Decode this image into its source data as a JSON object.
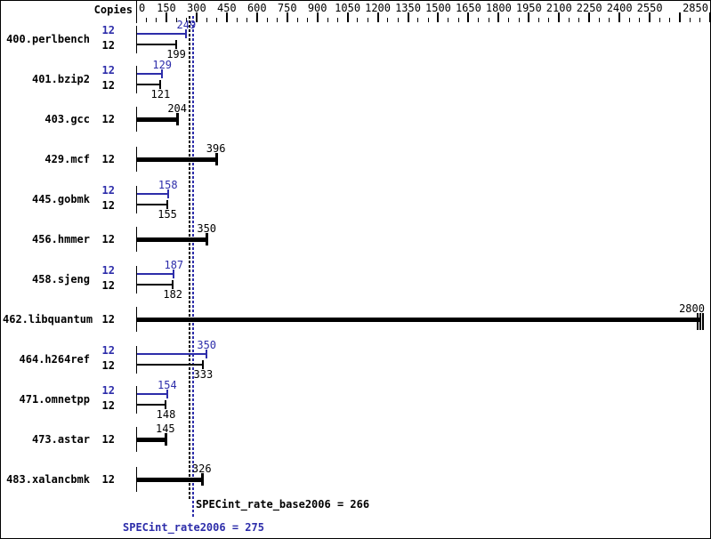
{
  "header": {
    "copies_label": "Copies"
  },
  "colors": {
    "base": "#000000",
    "peak": "#2d2daa",
    "background": "#ffffff"
  },
  "chart_data": {
    "type": "bar",
    "orientation": "horizontal",
    "x_axis": {
      "min": 0,
      "max": 2850,
      "major_tick": 150,
      "minor_tick": 50,
      "tick_labels": [
        "0",
        "150",
        "300",
        "450",
        "600",
        "750",
        "900",
        "1050",
        "1200",
        "1350",
        "1500",
        "1650",
        "1800",
        "1950",
        "2100",
        "2250",
        "2400",
        "2550",
        "2850"
      ]
    },
    "benchmarks": [
      {
        "name": "400.perlbench",
        "copies": 12,
        "peak": 249,
        "base": 199
      },
      {
        "name": "401.bzip2",
        "copies": 12,
        "peak": 129,
        "base": 121
      },
      {
        "name": "403.gcc",
        "copies": 12,
        "peak": null,
        "base": 204
      },
      {
        "name": "429.mcf",
        "copies": 12,
        "peak": null,
        "base": 396
      },
      {
        "name": "445.gobmk",
        "copies": 12,
        "peak": 158,
        "base": 155
      },
      {
        "name": "456.hmmer",
        "copies": 12,
        "peak": null,
        "base": 350
      },
      {
        "name": "458.sjeng",
        "copies": 12,
        "peak": 187,
        "base": 182
      },
      {
        "name": "462.libquantum",
        "copies": 12,
        "peak": null,
        "base": 2800,
        "end_marker": "triple-tick"
      },
      {
        "name": "464.h264ref",
        "copies": 12,
        "peak": 350,
        "base": 333
      },
      {
        "name": "471.omnetpp",
        "copies": 12,
        "peak": 154,
        "base": 148
      },
      {
        "name": "473.astar",
        "copies": 12,
        "peak": null,
        "base": 145
      },
      {
        "name": "483.xalancbmk",
        "copies": 12,
        "peak": null,
        "base": 326
      }
    ],
    "reference_lines": [
      {
        "name": "base",
        "value": 266,
        "style": "dotted",
        "color": "#000000"
      },
      {
        "name": "peak",
        "value": 275,
        "style": "dotted",
        "color": "#2d2daa"
      }
    ]
  },
  "footer": {
    "base_label": "SPECint_rate_base2006 = 266",
    "peak_label": "SPECint_rate2006 = 275"
  }
}
